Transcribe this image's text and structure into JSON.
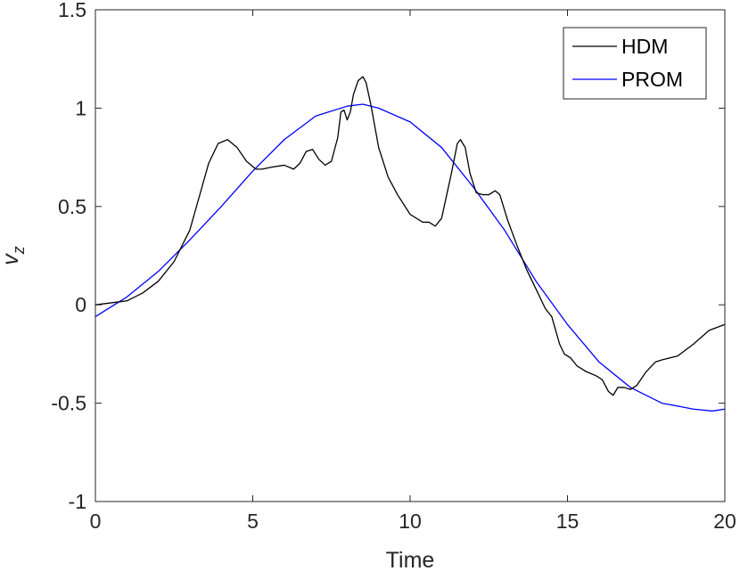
{
  "chart_data": {
    "type": "line",
    "xlabel": "Time",
    "ylabel": "v",
    "ylabel_subscript": "z",
    "xlim": [
      0,
      20
    ],
    "ylim": [
      -1,
      1.5
    ],
    "xticks": [
      0,
      5,
      10,
      15,
      20
    ],
    "xtick_labels": [
      "0",
      "5",
      "10",
      "15",
      "20"
    ],
    "yticks": [
      -1,
      -0.5,
      0,
      0.5,
      1,
      1.5
    ],
    "ytick_labels": [
      "-1",
      "-0.5",
      "0",
      "0.5",
      "1",
      "1.5"
    ],
    "grid": false,
    "legend_position": "top-right",
    "series": [
      {
        "name": "HDM",
        "color": "#000000",
        "x": [
          0,
          1,
          1.5,
          2,
          2.5,
          3,
          3.3,
          3.6,
          3.9,
          4.2,
          4.5,
          4.8,
          5.1,
          5.3,
          5.6,
          6,
          6.3,
          6.5,
          6.7,
          6.9,
          7.1,
          7.3,
          7.5,
          7.7,
          7.8,
          7.9,
          8.0,
          8.1,
          8.2,
          8.35,
          8.5,
          8.6,
          8.75,
          9.0,
          9.3,
          9.6,
          10.0,
          10.4,
          10.6,
          10.8,
          11.0,
          11.3,
          11.5,
          11.6,
          11.75,
          11.9,
          12.1,
          12.3,
          12.5,
          12.7,
          12.85,
          13.1,
          13.4,
          13.7,
          14.0,
          14.3,
          14.5,
          14.75,
          14.9,
          15.1,
          15.3,
          15.6,
          15.9,
          16.1,
          16.3,
          16.45,
          16.6,
          16.8,
          17.0,
          17.2,
          17.5,
          17.8,
          18.0,
          18.5,
          19.0,
          19.5,
          20.0
        ],
        "y": [
          0,
          0.02,
          0.06,
          0.12,
          0.22,
          0.38,
          0.55,
          0.72,
          0.82,
          0.84,
          0.8,
          0.73,
          0.69,
          0.69,
          0.7,
          0.71,
          0.69,
          0.72,
          0.78,
          0.79,
          0.74,
          0.71,
          0.73,
          0.85,
          0.98,
          0.99,
          0.94,
          0.98,
          1.07,
          1.14,
          1.16,
          1.13,
          1.02,
          0.8,
          0.65,
          0.56,
          0.46,
          0.42,
          0.42,
          0.4,
          0.44,
          0.66,
          0.82,
          0.84,
          0.8,
          0.67,
          0.57,
          0.56,
          0.56,
          0.58,
          0.56,
          0.43,
          0.3,
          0.18,
          0.08,
          -0.02,
          -0.06,
          -0.2,
          -0.25,
          -0.27,
          -0.31,
          -0.34,
          -0.36,
          -0.38,
          -0.44,
          -0.46,
          -0.42,
          -0.42,
          -0.43,
          -0.41,
          -0.34,
          -0.29,
          -0.28,
          -0.26,
          -0.2,
          -0.13,
          -0.1
        ]
      },
      {
        "name": "PROM",
        "color": "#0000ff",
        "x": [
          0,
          1,
          2,
          3,
          4,
          5,
          6,
          7,
          8,
          8.5,
          9,
          10,
          11,
          12,
          13,
          14,
          15,
          16,
          17,
          18,
          19,
          19.6,
          20
        ],
        "y": [
          -0.06,
          0.04,
          0.17,
          0.33,
          0.5,
          0.68,
          0.84,
          0.96,
          1.01,
          1.02,
          1.0,
          0.93,
          0.8,
          0.6,
          0.38,
          0.12,
          -0.1,
          -0.29,
          -0.42,
          -0.5,
          -0.53,
          -0.54,
          -0.53
        ]
      }
    ]
  }
}
